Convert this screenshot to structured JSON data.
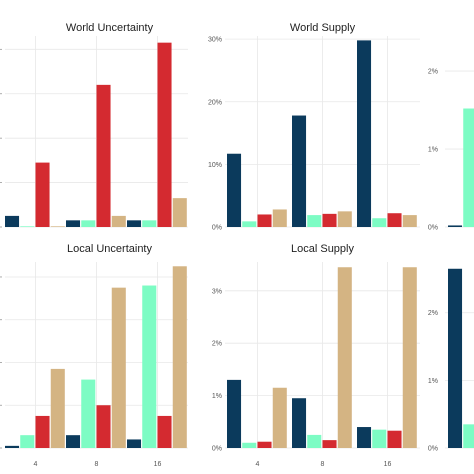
{
  "colors": {
    "series_palette": [
      "#0b3a5c",
      "#7dfcc4",
      "#d42a30",
      "#d4b483"
    ],
    "grid": "#e8e8e8",
    "background": "#ffffff"
  },
  "chart_data": [
    {
      "type": "bar",
      "title": "World Uncertainty",
      "categories": [
        "4",
        "8",
        "16"
      ],
      "xtick_labels_visible": false,
      "series": [
        {
          "values": [
            0.05,
            0.03,
            0.03
          ]
        },
        {
          "values": [
            0.003,
            0.03,
            0.03
          ]
        },
        {
          "values": [
            0.29,
            0.64,
            0.83
          ]
        },
        {
          "values": [
            0.003,
            0.05,
            0.13
          ]
        }
      ],
      "ylim": [
        0,
        0.86
      ],
      "yticks": [
        0,
        0.2,
        0.4,
        0.6,
        0.8
      ],
      "ytick_labels": [
        "",
        "",
        "",
        "",
        ""
      ],
      "grid": true
    },
    {
      "type": "bar",
      "title": "World Supply",
      "categories": [
        "4",
        "8",
        "16"
      ],
      "xtick_labels_visible": false,
      "series": [
        {
          "values": [
            0.117,
            0.178,
            0.298
          ]
        },
        {
          "values": [
            0.009,
            0.019,
            0.014
          ]
        },
        {
          "values": [
            0.02,
            0.021,
            0.022
          ]
        },
        {
          "values": [
            0.028,
            0.025,
            0.019
          ]
        }
      ],
      "ylim": [
        0,
        0.305
      ],
      "yticks": [
        0,
        0.1,
        0.2,
        0.3
      ],
      "ytick_labels": [
        "0%",
        "10%",
        "20%",
        "30%"
      ],
      "grid": true
    },
    {
      "type": "bar",
      "title": "",
      "categories": [
        "4",
        "8",
        "16"
      ],
      "xtick_labels_visible": false,
      "visible_categories": 1,
      "series": [
        {
          "values": [
            0.0002,
            0,
            0
          ]
        },
        {
          "values": [
            0.0152,
            0,
            0
          ]
        },
        {
          "values": [
            0,
            0,
            0
          ]
        },
        {
          "values": [
            0,
            0,
            0
          ]
        }
      ],
      "ylim": [
        0,
        0.0245
      ],
      "yticks": [
        0,
        0.01,
        0.02
      ],
      "ytick_labels": [
        "0%",
        "1%",
        "2%"
      ],
      "grid": true
    },
    {
      "type": "bar",
      "title": "Local Uncertainty",
      "categories": [
        "4",
        "8",
        "16"
      ],
      "xtick_labels_visible": true,
      "series": [
        {
          "values": [
            0.01,
            0.06,
            0.04
          ]
        },
        {
          "values": [
            0.06,
            0.32,
            0.76
          ]
        },
        {
          "values": [
            0.15,
            0.2,
            0.15
          ]
        },
        {
          "values": [
            0.37,
            0.75,
            0.85
          ]
        }
      ],
      "ylim": [
        0,
        0.87
      ],
      "yticks": [
        0,
        0.2,
        0.4,
        0.6,
        0.8
      ],
      "ytick_labels": [
        "",
        "",
        "",
        "",
        ""
      ],
      "grid": true
    },
    {
      "type": "bar",
      "title": "Local Supply",
      "categories": [
        "4",
        "8",
        "16"
      ],
      "xtick_labels_visible": true,
      "series": [
        {
          "values": [
            0.013,
            0.0095,
            0.004
          ]
        },
        {
          "values": [
            0.001,
            0.0025,
            0.0035
          ]
        },
        {
          "values": [
            0.0012,
            0.0015,
            0.0033
          ]
        },
        {
          "values": [
            0.0115,
            0.0345,
            0.0345
          ]
        }
      ],
      "ylim": [
        0,
        0.0355
      ],
      "yticks": [
        0,
        0.01,
        0.02,
        0.03
      ],
      "ytick_labels": [
        "0%",
        "1%",
        "2%",
        "3%"
      ],
      "grid": true
    },
    {
      "type": "bar",
      "title": "",
      "categories": [
        "4",
        "8",
        "16"
      ],
      "xtick_labels_visible": false,
      "visible_categories": 1,
      "series": [
        {
          "values": [
            0.0265,
            0,
            0
          ]
        },
        {
          "values": [
            0.0035,
            0,
            0
          ]
        },
        {
          "values": [
            0,
            0,
            0
          ]
        },
        {
          "values": [
            0,
            0,
            0
          ]
        }
      ],
      "ylim": [
        0,
        0.0275
      ],
      "yticks": [
        0,
        0.01,
        0.02
      ],
      "ytick_labels": [
        "0%",
        "1%",
        "2%"
      ],
      "grid": true
    }
  ]
}
